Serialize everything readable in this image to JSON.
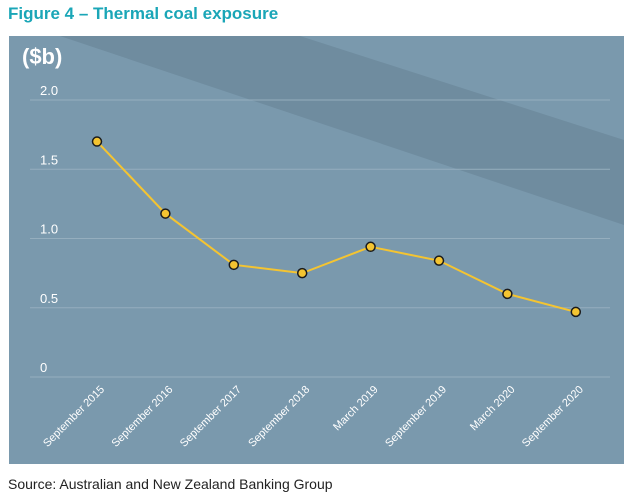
{
  "figure_title": "Figure 4 – Thermal coal exposure",
  "source": "Source: Australian and New Zealand Banking Group",
  "colors": {
    "title": "#1aa6b7",
    "panel": "#7a99ad",
    "band": "#6f8c9f",
    "grid": "#95aebe",
    "line": "#f4c431",
    "marker_fill": "#f4c431",
    "marker_stroke": "#1b1b1b",
    "text_light": "#ffffff"
  },
  "chart_data": {
    "type": "line",
    "title": "",
    "unit_label": "($b)",
    "xlabel": "",
    "ylabel": "($b)",
    "ylim": [
      0,
      2.0
    ],
    "yticks": [
      "0",
      "0.5",
      "1.0",
      "1.5",
      "2.0"
    ],
    "categories": [
      "September 2015",
      "September 2016",
      "September 2017",
      "September 2018",
      "March 2019",
      "September 2019",
      "March 2020",
      "September 2020"
    ],
    "values": [
      1.7,
      1.18,
      0.81,
      0.75,
      0.94,
      0.84,
      0.6,
      0.47
    ],
    "grid": true,
    "legend": "none"
  }
}
